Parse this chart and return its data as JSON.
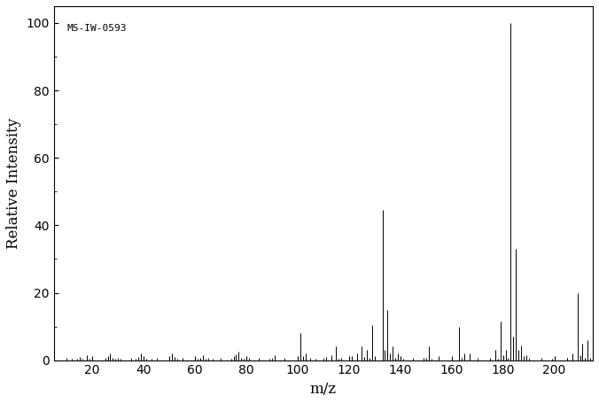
{
  "annotation": "MS-IW-0593",
  "xlabel": "m/z",
  "ylabel": "Relative Intensity",
  "xlim": [
    5,
    215
  ],
  "ylim": [
    0,
    105
  ],
  "xticks": [
    20,
    40,
    60,
    80,
    100,
    120,
    140,
    160,
    180,
    200
  ],
  "yticks": [
    0,
    20,
    40,
    60,
    80,
    100
  ],
  "peaks": [
    [
      10,
      0.5
    ],
    [
      12,
      0.3
    ],
    [
      14,
      0.5
    ],
    [
      15,
      1.0
    ],
    [
      16,
      0.5
    ],
    [
      18,
      1.5
    ],
    [
      19,
      0.5
    ],
    [
      25,
      0.5
    ],
    [
      26,
      1.2
    ],
    [
      27,
      2.0
    ],
    [
      28,
      0.8
    ],
    [
      29,
      0.5
    ],
    [
      31,
      0.5
    ],
    [
      37,
      0.5
    ],
    [
      38,
      1.0
    ],
    [
      39,
      2.0
    ],
    [
      40,
      0.8
    ],
    [
      41,
      0.5
    ],
    [
      43,
      0.5
    ],
    [
      50,
      1.2
    ],
    [
      51,
      2.0
    ],
    [
      52,
      1.0
    ],
    [
      53,
      0.5
    ],
    [
      55,
      0.5
    ],
    [
      61,
      0.5
    ],
    [
      62,
      0.8
    ],
    [
      63,
      1.5
    ],
    [
      64,
      0.5
    ],
    [
      67,
      0.5
    ],
    [
      74,
      0.5
    ],
    [
      75,
      1.2
    ],
    [
      76,
      1.8
    ],
    [
      77,
      2.5
    ],
    [
      78,
      0.8
    ],
    [
      79,
      0.5
    ],
    [
      80,
      0.5
    ],
    [
      81,
      0.8
    ],
    [
      85,
      0.3
    ],
    [
      89,
      0.5
    ],
    [
      91,
      1.5
    ],
    [
      95,
      0.5
    ],
    [
      101,
      8.0
    ],
    [
      102,
      1.2
    ],
    [
      103,
      2.0
    ],
    [
      107,
      0.5
    ],
    [
      111,
      1.0
    ],
    [
      113,
      1.5
    ],
    [
      115,
      4.0
    ],
    [
      116,
      0.5
    ],
    [
      117,
      0.8
    ],
    [
      121,
      1.2
    ],
    [
      123,
      2.0
    ],
    [
      125,
      4.0
    ],
    [
      126,
      1.0
    ],
    [
      127,
      3.0
    ],
    [
      128,
      0.8
    ],
    [
      129,
      10.5
    ],
    [
      130,
      1.2
    ],
    [
      133,
      44.5
    ],
    [
      134,
      3.0
    ],
    [
      135,
      15.0
    ],
    [
      136,
      2.0
    ],
    [
      137,
      4.0
    ],
    [
      138,
      0.8
    ],
    [
      139,
      2.0
    ],
    [
      141,
      0.5
    ],
    [
      149,
      0.8
    ],
    [
      151,
      4.0
    ],
    [
      152,
      0.5
    ],
    [
      155,
      1.2
    ],
    [
      163,
      10.0
    ],
    [
      164,
      0.8
    ],
    [
      165,
      2.0
    ],
    [
      167,
      2.0
    ],
    [
      175,
      0.5
    ],
    [
      177,
      3.0
    ],
    [
      178,
      0.5
    ],
    [
      179,
      11.5
    ],
    [
      180,
      1.5
    ],
    [
      181,
      3.0
    ],
    [
      182,
      0.8
    ],
    [
      183,
      100.0
    ],
    [
      184,
      7.0
    ],
    [
      185,
      33.0
    ],
    [
      186,
      3.0
    ],
    [
      187,
      4.5
    ],
    [
      188,
      1.2
    ],
    [
      189,
      1.5
    ],
    [
      195,
      0.3
    ],
    [
      199,
      0.5
    ],
    [
      205,
      0.8
    ],
    [
      207,
      2.0
    ],
    [
      209,
      20.0
    ],
    [
      210,
      1.5
    ],
    [
      211,
      5.0
    ],
    [
      212,
      0.8
    ],
    [
      213,
      6.0
    ],
    [
      214,
      0.8
    ]
  ],
  "line_color": "#000000",
  "background_color": "#ffffff",
  "annotation_fontsize": 8,
  "label_fontsize": 12,
  "tick_fontsize": 10
}
